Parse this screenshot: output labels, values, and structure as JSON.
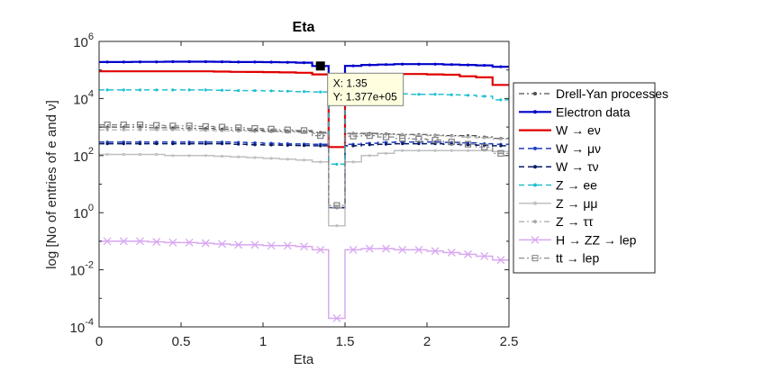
{
  "chart_data": {
    "type": "line",
    "title": "Eta",
    "xlabel": "Eta",
    "ylabel": "log [No of entries of e and ν]",
    "xlim": [
      0,
      2.5
    ],
    "ylim": [
      0.0001,
      1000000
    ],
    "yscale": "log",
    "grid": false,
    "legend_position": "right",
    "x_ticks": [
      "0",
      "0.5",
      "1",
      "1.5",
      "2",
      "2.5"
    ],
    "y_ticks": [
      {
        "base": "10",
        "exp": "-4"
      },
      {
        "base": "10",
        "exp": "-2"
      },
      {
        "base": "10",
        "exp": "0"
      },
      {
        "base": "10",
        "exp": "2"
      },
      {
        "base": "10",
        "exp": "4"
      },
      {
        "base": "10",
        "exp": "6"
      }
    ],
    "x": [
      0.05,
      0.15,
      0.25,
      0.35,
      0.45,
      0.55,
      0.65,
      0.75,
      0.85,
      0.95,
      1.05,
      1.15,
      1.25,
      1.35,
      1.45,
      1.55,
      1.65,
      1.75,
      1.85,
      1.95,
      2.05,
      2.15,
      2.25,
      2.35,
      2.45
    ],
    "series": [
      {
        "name": "Drell-Yan processes",
        "color": "#4d4d4d",
        "dash": "6,3,2,3",
        "marker": "dot",
        "width": 1.2,
        "values": [
          1000,
          1000,
          1000,
          950,
          950,
          900,
          900,
          850,
          800,
          780,
          750,
          720,
          700,
          650,
          1.5,
          600,
          600,
          580,
          550,
          550,
          520,
          500,
          500,
          450,
          400
        ]
      },
      {
        "name": "Electron data",
        "color": "#0000cc",
        "dash": "",
        "marker": "dot",
        "width": 2.2,
        "values": [
          190000,
          190000,
          192000,
          192000,
          195000,
          195000,
          195000,
          193000,
          190000,
          190000,
          188000,
          185000,
          180000,
          137700,
          40000,
          140000,
          150000,
          155000,
          160000,
          160000,
          160000,
          155000,
          150000,
          145000,
          130000
        ]
      },
      {
        "name": "W → eν",
        "color": "#e00000",
        "dash": "",
        "marker": "none",
        "width": 2.2,
        "values": [
          90000,
          90000,
          90000,
          90000,
          90000,
          90000,
          90000,
          88000,
          86000,
          85000,
          84000,
          82000,
          80000,
          70000,
          200,
          65000,
          70000,
          72000,
          72000,
          72000,
          70000,
          68000,
          60000,
          55000,
          30000
        ]
      },
      {
        "name": "W → μν",
        "color": "#1f3fbf",
        "dash": "6,4",
        "marker": "dot",
        "width": 1.5,
        "values": [
          300,
          300,
          300,
          300,
          300,
          300,
          300,
          300,
          290,
          280,
          270,
          260,
          255,
          250,
          1.5,
          250,
          270,
          290,
          300,
          300,
          300,
          290,
          280,
          260,
          250
        ]
      },
      {
        "name": "W → τν",
        "color": "#0a1a66",
        "dash": "6,4",
        "marker": "dot",
        "width": 1.5,
        "values": [
          260,
          260,
          260,
          260,
          260,
          260,
          260,
          260,
          250,
          240,
          235,
          230,
          225,
          220,
          1.5,
          220,
          240,
          250,
          260,
          260,
          260,
          250,
          240,
          230,
          220
        ]
      },
      {
        "name": "Z → ee",
        "color": "#20c0d0",
        "dash": "6,4",
        "marker": "dot",
        "width": 1.5,
        "values": [
          20000,
          20000,
          20000,
          20000,
          20000,
          20000,
          20000,
          19500,
          19000,
          19000,
          18500,
          18000,
          17500,
          17000,
          50,
          16000,
          15000,
          15000,
          14500,
          14000,
          14000,
          13500,
          13000,
          12000,
          9000
        ]
      },
      {
        "name": "Z → μμ",
        "color": "#c0c0c0",
        "dash": "",
        "marker": "dot",
        "width": 1.5,
        "values": [
          110,
          110,
          110,
          110,
          100,
          100,
          100,
          95,
          90,
          85,
          80,
          75,
          70,
          60,
          0.35,
          60,
          100,
          120,
          150,
          150,
          150,
          150,
          150,
          150,
          140
        ]
      },
      {
        "name": "Z → ττ",
        "color": "#a8a8a8",
        "dash": "6,3,2,3",
        "marker": "dot",
        "width": 1.2,
        "values": [
          800,
          800,
          800,
          800,
          800,
          780,
          760,
          740,
          720,
          700,
          680,
          660,
          640,
          600,
          1.5,
          580,
          560,
          560,
          540,
          520,
          500,
          480,
          450,
          420,
          380
        ]
      },
      {
        "name": "H → ZZ → lep",
        "color": "#d8a8f0",
        "dash": "",
        "marker": "x",
        "width": 1.5,
        "values": [
          0.1,
          0.1,
          0.1,
          0.095,
          0.09,
          0.09,
          0.085,
          0.08,
          0.075,
          0.075,
          0.07,
          0.07,
          0.065,
          0.05,
          0.0002,
          0.05,
          0.055,
          0.055,
          0.05,
          0.05,
          0.045,
          0.04,
          0.035,
          0.03,
          0.022
        ]
      },
      {
        "name": "tt → lep",
        "color": "#808080",
        "dash": "6,3,2,3",
        "marker": "square",
        "width": 1.2,
        "values": [
          1200,
          1200,
          1200,
          1150,
          1100,
          1100,
          1050,
          1000,
          950,
          900,
          850,
          800,
          760,
          500,
          1.8,
          480,
          500,
          450,
          400,
          380,
          350,
          300,
          250,
          200,
          120
        ]
      }
    ],
    "annotation": {
      "x_line": "X: 1.35",
      "y_line": "Y: 1.377e+05",
      "x": 1.35,
      "y": 137700
    }
  }
}
